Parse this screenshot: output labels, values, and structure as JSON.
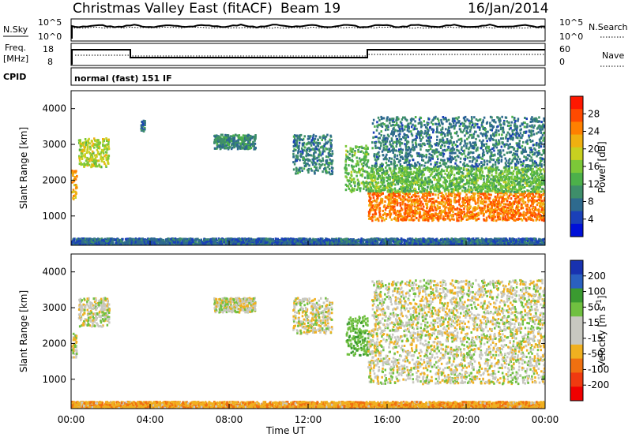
{
  "header": {
    "station": "Christmas Valley East (fitACF)",
    "beam": "Beam 19",
    "date": "16/Jan/2014"
  },
  "status_panel": {
    "left_labels": {
      "nsky": "N.Sky",
      "freq": "Freq.",
      "freq_unit": "[MHz]",
      "cpid": "CPID"
    },
    "right_labels": {
      "nsearch": "N.Search",
      "nave": "Nave"
    },
    "nsky_ticks": [
      "10^5",
      "10^0"
    ],
    "nsearch_ticks": [
      "10^5",
      "10^0"
    ],
    "freq_ticks": [
      "18",
      "8"
    ],
    "nave_ticks": [
      "60",
      "0"
    ],
    "cpid_text": "normal (fast) 151 IF"
  },
  "chart_data": [
    {
      "type": "heatmap",
      "name": "power",
      "title": "",
      "xlabel": "",
      "ylabel": "Slant Range [km]",
      "ylim": [
        180,
        4500
      ],
      "y_ticks": [
        "1000",
        "2000",
        "3000",
        "4000"
      ],
      "x_range_hours": [
        0,
        24
      ],
      "colorbar_label": "Power [dB]",
      "colorbar_ticks": [
        "28",
        "24",
        "20",
        "16",
        "12",
        "8",
        "4"
      ],
      "colorbar_colors": [
        "#0010d8",
        "#1a40b8",
        "#2e6a8e",
        "#3e8e6a",
        "#4cb04a",
        "#7cc838",
        "#c8d020",
        "#f0b010",
        "#ff8000",
        "#ff4a00",
        "#ff1800"
      ],
      "echo_regions": [
        {
          "t0": 0.0,
          "t1": 0.25,
          "r0": 1500,
          "r1": 2300,
          "p": 24
        },
        {
          "t0": 0.35,
          "t1": 1.9,
          "r0": 2400,
          "r1": 3200,
          "p": 18
        },
        {
          "t0": 3.5,
          "t1": 3.7,
          "r0": 3400,
          "r1": 3700,
          "p": 8
        },
        {
          "t0": 7.2,
          "t1": 9.3,
          "r0": 2900,
          "r1": 3300,
          "p": 9
        },
        {
          "t0": 11.2,
          "t1": 13.2,
          "r0": 2200,
          "r1": 3300,
          "p": 8
        },
        {
          "t0": 13.8,
          "t1": 15.0,
          "r0": 1700,
          "r1": 3000,
          "p": 14
        },
        {
          "t0": 15.0,
          "t1": 24.0,
          "r0": 900,
          "r1": 1700,
          "p": 26
        },
        {
          "t0": 15.0,
          "t1": 24.0,
          "r0": 1700,
          "r1": 2400,
          "p": 14
        },
        {
          "t0": 15.2,
          "t1": 24.0,
          "r0": 2400,
          "r1": 3800,
          "p": 8
        },
        {
          "t0": 0.0,
          "t1": 24.0,
          "r0": 180,
          "r1": 400,
          "p": 6
        }
      ]
    },
    {
      "type": "heatmap",
      "name": "velocity",
      "title": "",
      "xlabel": "Time UT",
      "ylabel": "Slant Range [km]",
      "ylim": [
        180,
        4500
      ],
      "y_ticks": [
        "1000",
        "2000",
        "3000",
        "4000"
      ],
      "x_ticks": [
        "00:00",
        "04:00",
        "08:00",
        "12:00",
        "16:00",
        "20:00",
        "00:00"
      ],
      "x_range_hours": [
        0,
        24
      ],
      "colorbar_label": "Velocity [m s",
      "colorbar_label_exp": "-1",
      "colorbar_label_end": "]",
      "colorbar_ticks": [
        "200",
        "100",
        "50",
        "15",
        "-15",
        "-50",
        "-100",
        "-200"
      ],
      "colorbar_colors": [
        "#1832b0",
        "#2a60c0",
        "#3a9a30",
        "#70c040",
        "#c8c8c0",
        "#c8c8c0",
        "#f0b020",
        "#f07010",
        "#f03a10",
        "#f00000"
      ],
      "echo_regions": [
        {
          "t0": 0.0,
          "t1": 0.25,
          "r0": 1600,
          "r1": 2300,
          "v": 0
        },
        {
          "t0": 0.35,
          "t1": 1.9,
          "r0": 2500,
          "r1": 3300,
          "v": 0
        },
        {
          "t0": 7.2,
          "t1": 9.3,
          "r0": 2900,
          "r1": 3300,
          "v": 0
        },
        {
          "t0": 11.2,
          "t1": 13.2,
          "r0": 2300,
          "r1": 3300,
          "v": 0
        },
        {
          "t0": 13.9,
          "t1": 15.0,
          "r0": 1700,
          "r1": 2800,
          "v": 60
        },
        {
          "t0": 15.0,
          "t1": 24.0,
          "r0": 900,
          "r1": 2400,
          "v": 0
        },
        {
          "t0": 15.2,
          "t1": 24.0,
          "r0": 2400,
          "r1": 3800,
          "v": 0
        },
        {
          "t0": 0.0,
          "t1": 24.0,
          "r0": 180,
          "r1": 400,
          "v": -40
        }
      ]
    }
  ]
}
